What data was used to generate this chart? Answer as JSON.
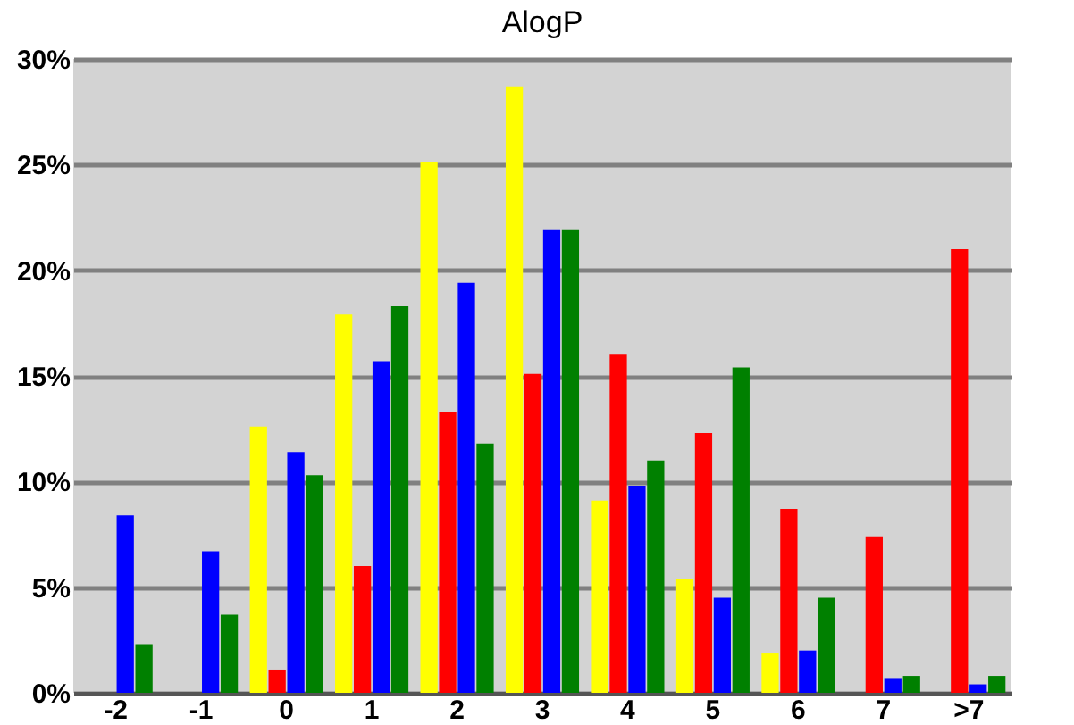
{
  "chart_data": {
    "type": "bar",
    "title": "AlogP",
    "categories": [
      "-2",
      "-1",
      "0",
      "1",
      "2",
      "3",
      "4",
      "5",
      "6",
      "7",
      ">7"
    ],
    "series": [
      {
        "color": "#ffff00",
        "values": [
          0,
          0,
          12.6,
          17.9,
          25.1,
          28.7,
          9.1,
          5.4,
          1.9,
          0,
          0
        ]
      },
      {
        "color": "#ff0000",
        "values": [
          0,
          0,
          1.1,
          6.0,
          13.3,
          15.1,
          16.0,
          12.3,
          8.7,
          7.4,
          21.0
        ]
      },
      {
        "color": "#0000ff",
        "values": [
          8.4,
          6.7,
          11.4,
          15.7,
          19.4,
          21.9,
          9.8,
          4.5,
          2.0,
          0.7,
          0.4
        ]
      },
      {
        "color": "#008000",
        "values": [
          2.3,
          3.7,
          10.3,
          18.3,
          11.8,
          21.9,
          11.0,
          15.4,
          4.5,
          0.8,
          0.8
        ]
      }
    ],
    "ylim": [
      0,
      30
    ],
    "yticks": [
      {
        "value": 0,
        "label": "0%"
      },
      {
        "value": 5,
        "label": "5%"
      },
      {
        "value": 10,
        "label": "10%"
      },
      {
        "value": 15,
        "label": "15%"
      },
      {
        "value": 20,
        "label": "20%"
      },
      {
        "value": 25,
        "label": "25%"
      },
      {
        "value": 30,
        "label": "30%"
      }
    ],
    "grid": "y",
    "legend": false
  }
}
